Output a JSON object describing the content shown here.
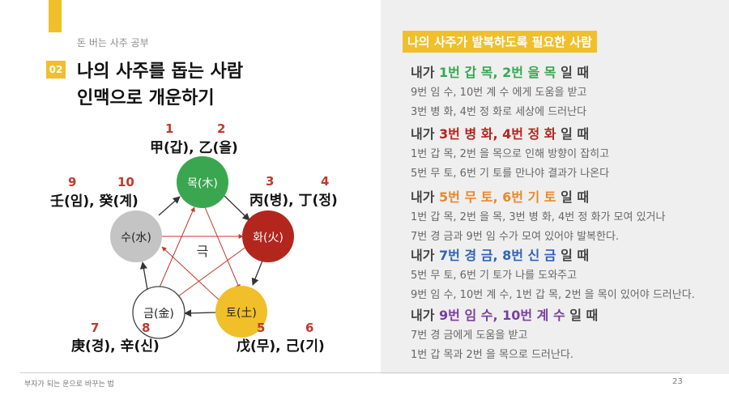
{
  "header": {
    "kicker": "돈 버는 사주 공부",
    "section_number": "02",
    "title_line1": "나의 사주를 돕는 사람",
    "title_line2": "인맥으로 개운하기"
  },
  "diagram": {
    "center_label": "극",
    "nodes": [
      {
        "label": "목(木)",
        "color": "#3aa650"
      },
      {
        "label": "화(火)",
        "color": "#b3261e"
      },
      {
        "label": "토(土)",
        "color": "#f0bf2a"
      },
      {
        "label": "금(金)",
        "color": "#ffffff"
      },
      {
        "label": "수(水)",
        "color": "#c4c4c4"
      }
    ],
    "stems": {
      "wood": "甲(갑), 乙(을)",
      "fire": "丙(병), 丁(정)",
      "earth": "戊(무), 己(기)",
      "metal": "庚(경), 辛(신)",
      "water": "壬(임), 癸(계)"
    },
    "numbers": [
      "1",
      "2",
      "3",
      "4",
      "5",
      "6",
      "7",
      "8",
      "9",
      "10"
    ]
  },
  "panel": {
    "header": "나의 사주가 발복하도록 필요한 사람",
    "sections": [
      {
        "pre": "내가 ",
        "hl": "1번 갑 목, 2번 을 목",
        "post": " 일 때",
        "lines": [
          "9번 임 수, 10번 계 수 에게 도움을 받고",
          "3번 병 화, 4번 정 화로 세상에 드러난다"
        ]
      },
      {
        "pre": "내가 ",
        "hl": "3번 병 화, 4번 정 화",
        "post": " 일 때",
        "lines": [
          "1번 갑 목, 2번 을 목으로 인해 방향이 잡히고",
          "5번 무 토, 6번 기 토를 만나야 결과가 나온다"
        ]
      },
      {
        "pre": "내가 ",
        "hl": "5번 무 토, 6번 기 토",
        "post": " 일 때",
        "lines": [
          "1번 갑 목, 2번 을 목, 3번 병 화, 4번 정 화가 모여 있거나",
          "7번 경 금과 9번 임 수가 모여 있어야 발복한다."
        ]
      },
      {
        "pre": "내가 ",
        "hl": "7번 경 금, 8번 신 금",
        "post": " 일 때",
        "lines": [
          "5번 무 토, 6번 기 토가 나를 도와주고",
          "9번 임 수, 10번 계 수, 1번 갑 목, 2번 을 목이 있어야 드러난다."
        ]
      },
      {
        "pre": "내가 ",
        "hl": "9번 임 수, 10번 계 수",
        "post": " 일 때",
        "lines": [
          "7번 경 금에게 도움을 받고",
          "1번 갑 목과 2번 을 목으로 드러난다."
        ]
      }
    ]
  },
  "footer": {
    "text": "부자가 되는 운으로 바꾸는 법",
    "page": "23"
  }
}
